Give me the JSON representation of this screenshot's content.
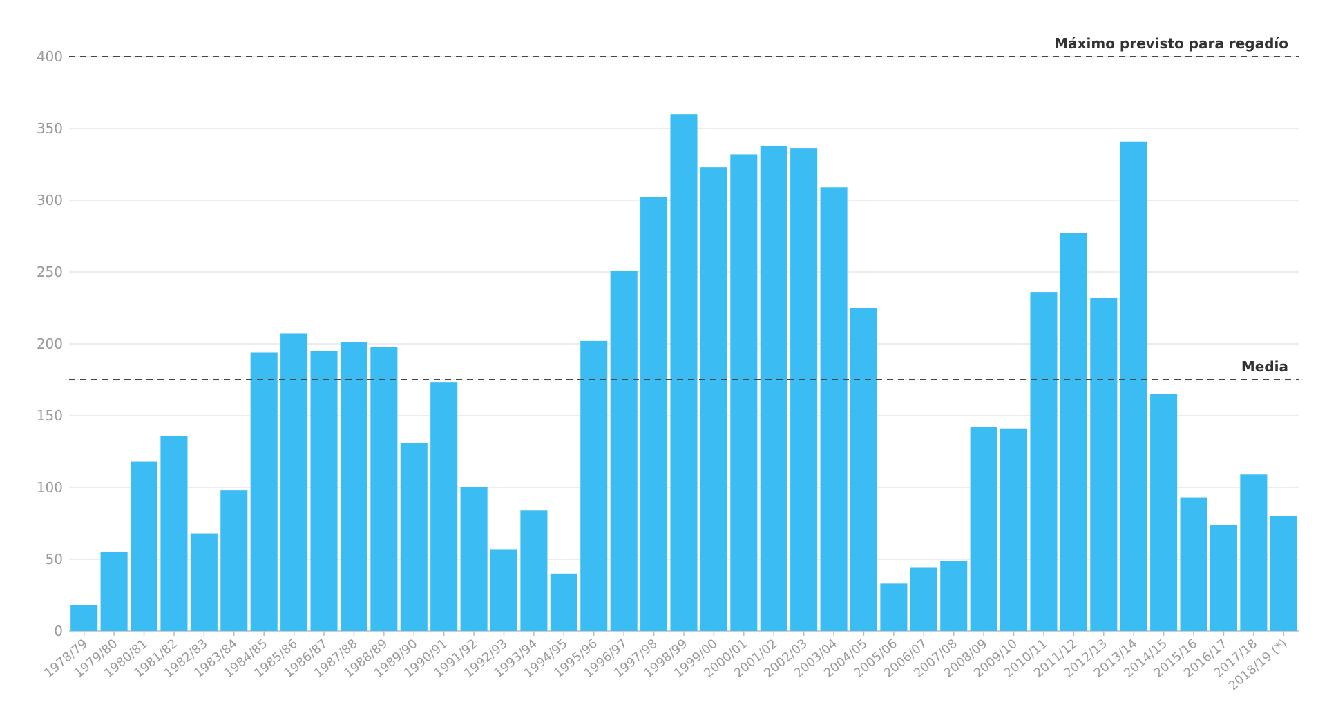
{
  "chart_data": {
    "type": "bar",
    "title": "",
    "xlabel": "",
    "ylabel": "",
    "ylim": [
      0,
      400
    ],
    "yticks": [
      0,
      50,
      100,
      150,
      200,
      250,
      300,
      350,
      400
    ],
    "grid": true,
    "bar_color": "#3bbdf3",
    "categories": [
      "1978/79",
      "1979/80",
      "1980/81",
      "1981/82",
      "1982/83",
      "1983/84",
      "1984/85",
      "1985/86",
      "1986/87",
      "1987/88",
      "1988/89",
      "1989/90",
      "1990/91",
      "1991/92",
      "1992/93",
      "1993/94",
      "1994/95",
      "1995/96",
      "1996/97",
      "1997/98",
      "1998/99",
      "1999/00",
      "2000/01",
      "2001/02",
      "2002/03",
      "2003/04",
      "2004/05",
      "2005/06",
      "2006/07",
      "2007/08",
      "2008/09",
      "2009/10",
      "2010/11",
      "2011/12",
      "2012/13",
      "2013/14",
      "2014/15",
      "2015/16",
      "2016/17",
      "2017/18",
      "2018/19 (*)"
    ],
    "values": [
      18,
      55,
      118,
      136,
      68,
      98,
      194,
      207,
      195,
      201,
      198,
      131,
      173,
      100,
      57,
      84,
      40,
      202,
      251,
      302,
      360,
      323,
      332,
      338,
      336,
      309,
      225,
      33,
      44,
      49,
      142,
      141,
      236,
      277,
      232,
      341,
      165,
      93,
      74,
      109,
      80
    ],
    "reference_lines": [
      {
        "label": "Máximo previsto para regadío",
        "value": 400
      },
      {
        "label": "Media",
        "value": 175
      }
    ]
  }
}
